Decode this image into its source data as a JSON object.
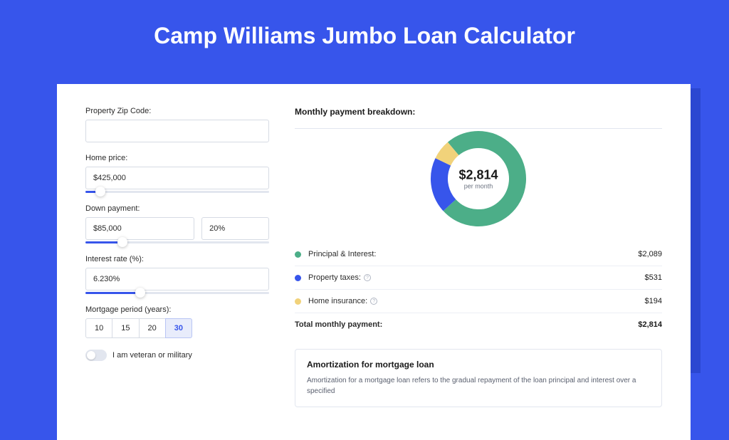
{
  "page": {
    "title": "Camp Williams Jumbo Loan Calculator",
    "bg_color": "#3755eb",
    "card_bg": "#ffffff",
    "shadow_color": "#2b47d1"
  },
  "form": {
    "zip_label": "Property Zip Code:",
    "zip_value": "",
    "home_price_label": "Home price:",
    "home_price_value": "$425,000",
    "home_price_slider_pct": 8,
    "down_payment_label": "Down payment:",
    "down_payment_value": "$85,000",
    "down_payment_pct": "20%",
    "down_payment_slider_pct": 20,
    "interest_label": "Interest rate (%):",
    "interest_value": "6.230%",
    "interest_slider_pct": 30,
    "period_label": "Mortgage period (years):",
    "period_options": [
      "10",
      "15",
      "20",
      "30"
    ],
    "period_selected": "30",
    "veteran_label": "I am veteran or military",
    "veteran_on": false
  },
  "breakdown": {
    "title": "Monthly payment breakdown:",
    "donut": {
      "center_value": "$2,814",
      "center_sub": "per month",
      "radius": 55,
      "stroke_width": 24,
      "slices": [
        {
          "name": "principal_interest",
          "value": 2089,
          "pct": 74.2,
          "color": "#4cae88"
        },
        {
          "name": "property_taxes",
          "value": 531,
          "pct": 18.9,
          "color": "#3755eb"
        },
        {
          "name": "home_insurance",
          "value": 194,
          "pct": 6.9,
          "color": "#f1d27a"
        }
      ]
    },
    "legend": [
      {
        "dot": "#4cae88",
        "label": "Principal & Interest:",
        "info": false,
        "value": "$2,089"
      },
      {
        "dot": "#3755eb",
        "label": "Property taxes:",
        "info": true,
        "value": "$531"
      },
      {
        "dot": "#f1d27a",
        "label": "Home insurance:",
        "info": true,
        "value": "$194"
      }
    ],
    "total_label": "Total monthly payment:",
    "total_value": "$2,814"
  },
  "amortization": {
    "title": "Amortization for mortgage loan",
    "text": "Amortization for a mortgage loan refers to the gradual repayment of the loan principal and interest over a specified"
  }
}
